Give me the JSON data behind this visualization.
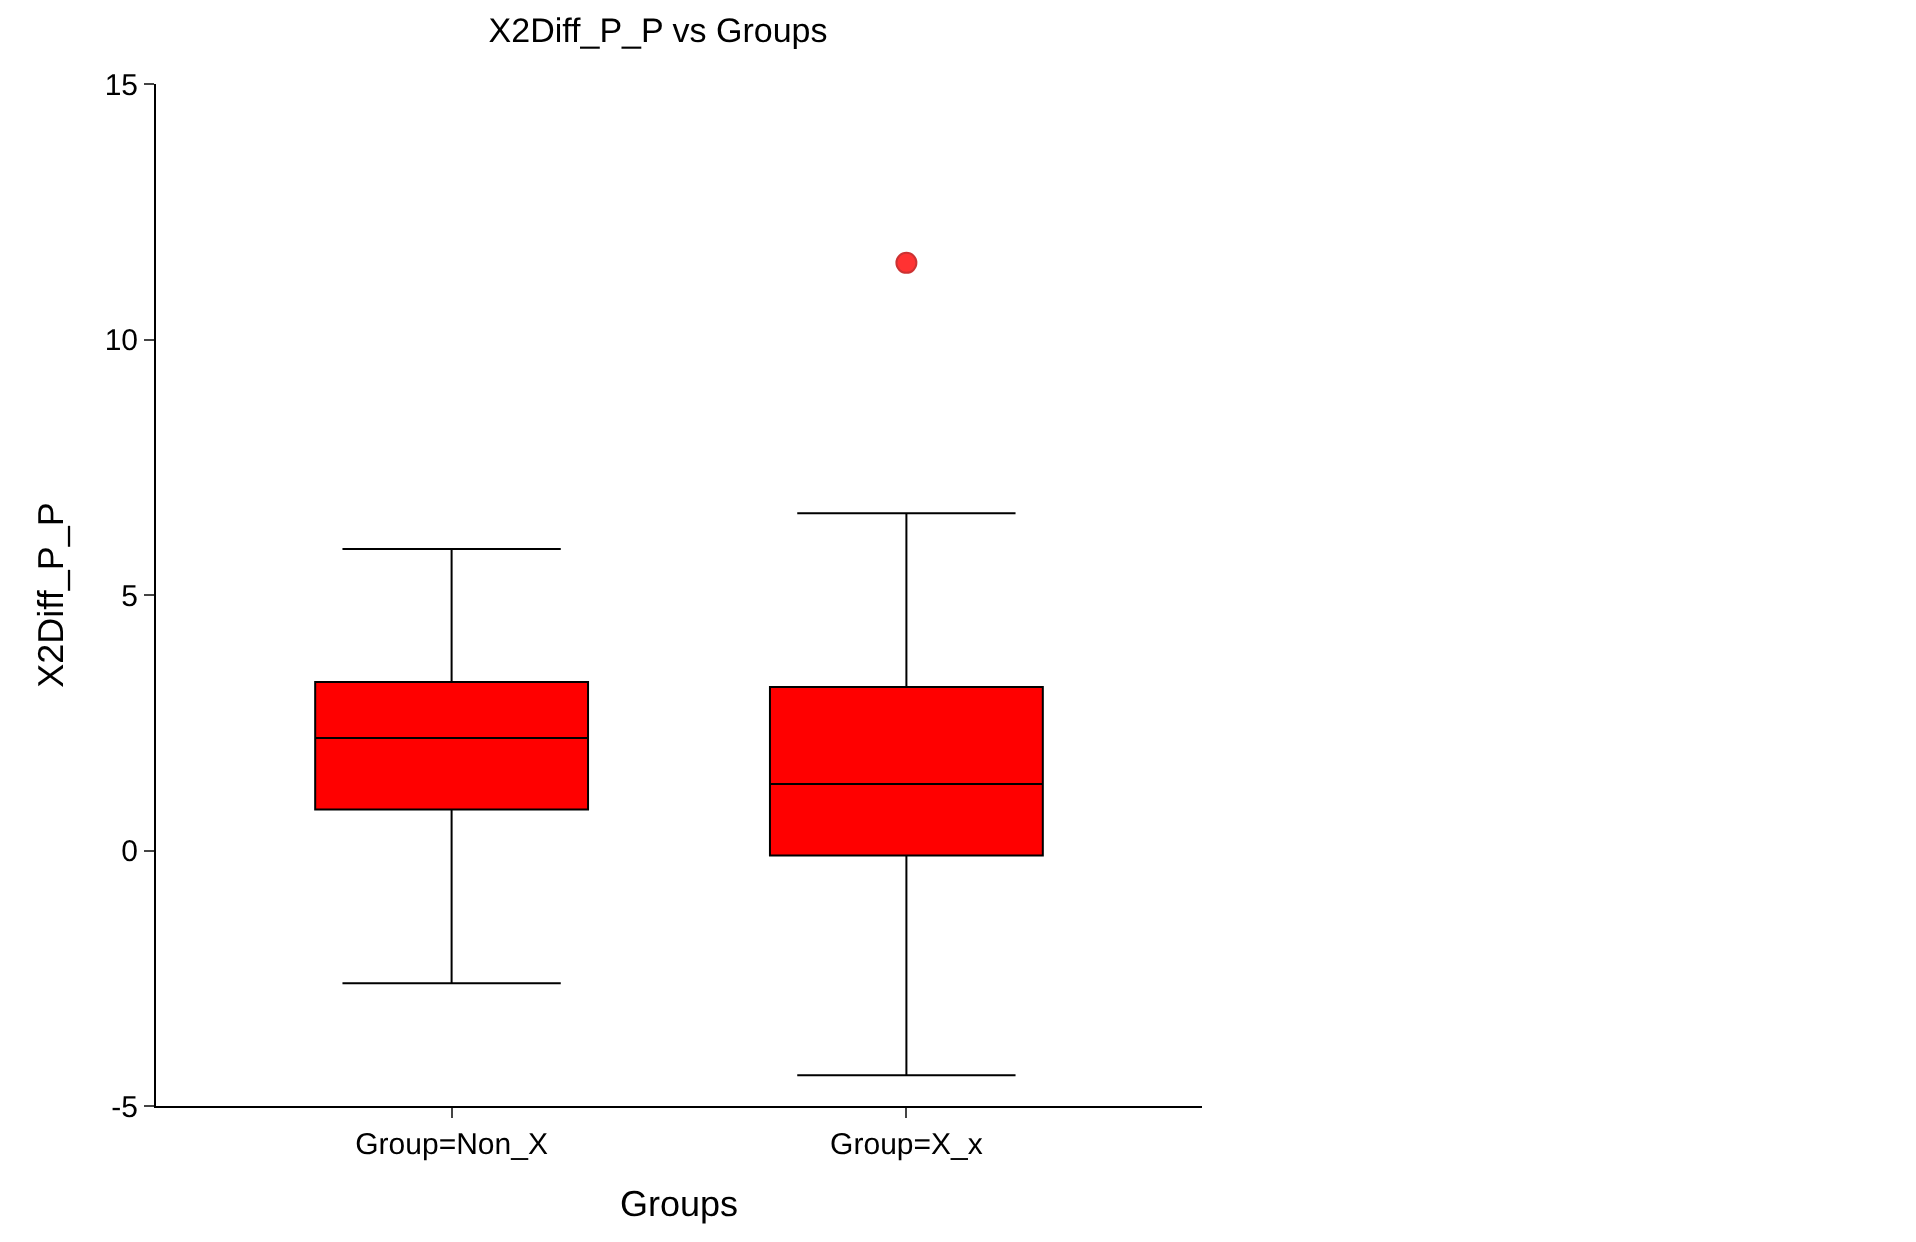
{
  "chart_data": {
    "type": "box",
    "title": "X2Diff_P_P vs Groups",
    "xlabel": "Groups",
    "ylabel": "X2Diff_P_P",
    "categories": [
      "Group=Non_X",
      "Group=X_x"
    ],
    "boxes": [
      {
        "low": -2.6,
        "q1": 0.8,
        "median": 2.2,
        "q3": 3.3,
        "high": 5.9
      },
      {
        "low": -4.4,
        "q1": -0.1,
        "median": 1.3,
        "q3": 3.2,
        "high": 6.6,
        "outliers": [
          11.5
        ]
      }
    ],
    "color": "#ff0000",
    "ylim": [
      -5,
      15
    ],
    "yticks": [
      -5,
      0,
      5,
      10,
      15
    ]
  }
}
